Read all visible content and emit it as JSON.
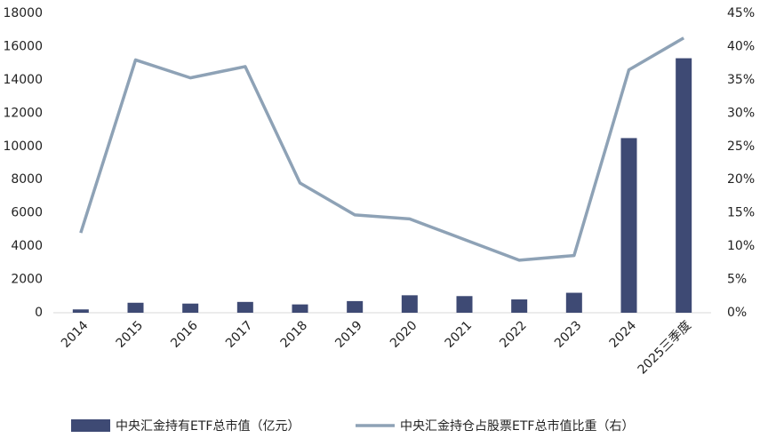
{
  "chart_data": {
    "type": "bar-line",
    "categories": [
      "2014",
      "2015",
      "2016",
      "2017",
      "2018",
      "2019",
      "2020",
      "2021",
      "2022",
      "2023",
      "2024",
      "2025三季度"
    ],
    "series": [
      {
        "name": "中央汇金持有ETF总市值（亿元）",
        "type": "bar",
        "color": "#3e4a74",
        "values": [
          200,
          600,
          550,
          650,
          500,
          700,
          1050,
          1000,
          800,
          1200,
          10500,
          15300
        ]
      },
      {
        "name": "中央汇金持仓占股票ETF总市值比重（右）",
        "type": "line",
        "axis": "y2",
        "color": "#8ea2b6",
        "values": [
          12,
          38,
          35.3,
          37,
          19.5,
          14.7,
          14.1,
          11,
          7.9,
          8.6,
          36.5,
          41.3
        ]
      }
    ],
    "ylim": [
      0,
      18000
    ],
    "yticks": [
      0,
      2000,
      4000,
      6000,
      8000,
      10000,
      12000,
      14000,
      16000,
      18000
    ],
    "y2lim": [
      0,
      45
    ],
    "y2ticks": [
      {
        "value": 0,
        "label": "0%"
      },
      {
        "value": 5,
        "label": "5%"
      },
      {
        "value": 10,
        "label": "10%"
      },
      {
        "value": 15,
        "label": "15%"
      },
      {
        "value": 20,
        "label": "20%"
      },
      {
        "value": 25,
        "label": "25%"
      },
      {
        "value": 30,
        "label": "30%"
      },
      {
        "value": 35,
        "label": "35%"
      },
      {
        "value": 40,
        "label": "40%"
      },
      {
        "value": 45,
        "label": "45%"
      }
    ],
    "grid": false
  }
}
